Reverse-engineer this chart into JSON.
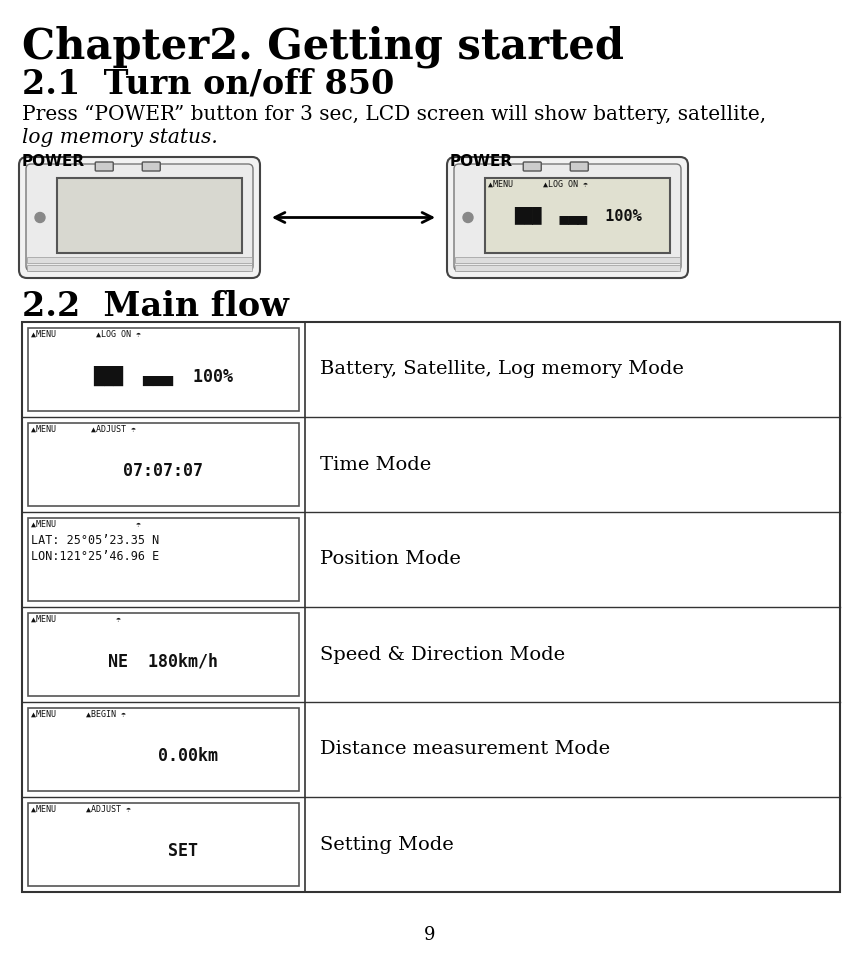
{
  "title": "Chapter2. Getting started",
  "section1_title": "2.1  Turn on/off 850",
  "section1_body1": "Press “POWER” button for 3 sec, LCD screen will show battery, satellite,",
  "section1_body2": "log memory status.",
  "power_label": "POWER",
  "section2_title": "2.2  Main flow",
  "table_rows": [
    {
      "label": "Battery, Satellite, Log memory Mode",
      "lcd_top": "▲MENU        ▲LOG ON ☂",
      "lcd_main": "███  ▄▄▄  100%",
      "lcd_lines": 2
    },
    {
      "label": "Time Mode",
      "lcd_top": "▲MENU       ▲ADJUST ☂",
      "lcd_main": "07:07:07",
      "lcd_lines": 2
    },
    {
      "label": "Position Mode",
      "lcd_top": "▲MENU                ☂",
      "lcd_line2": "LAT: 25°05’23.35 N",
      "lcd_line3": "LON:121°25’46.96 E",
      "lcd_lines": 3
    },
    {
      "label": "Speed & Direction Mode",
      "lcd_top": "▲MENU            ☂",
      "lcd_main": "NE  180km/h",
      "lcd_lines": 2
    },
    {
      "label": "Distance measurement Mode",
      "lcd_top": "▲MENU      ▲BEGIN ☂",
      "lcd_main": "     0.00km",
      "lcd_lines": 2
    },
    {
      "label": "Setting Mode",
      "lcd_top": "▲MENU      ▲ADJUST ☂",
      "lcd_main": "    SET",
      "lcd_lines": 2
    }
  ],
  "page_number": "9",
  "bg_color": "#ffffff",
  "text_color": "#000000",
  "table_color": "#333333",
  "lcd_bg": "#e8e8e0",
  "lcd_border": "#555555"
}
